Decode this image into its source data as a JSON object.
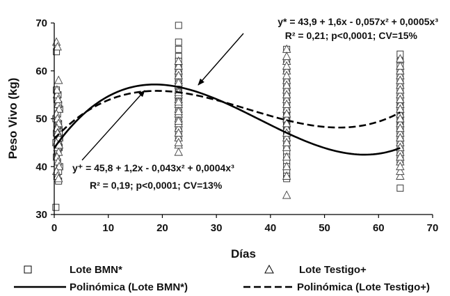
{
  "chart_data": {
    "type": "scatter",
    "title": "",
    "xlabel": "Días",
    "ylabel": "Peso Vivo (kg)",
    "xlim": [
      0,
      70
    ],
    "ylim": [
      30,
      70
    ],
    "xticks": [
      0,
      10,
      20,
      30,
      40,
      50,
      60,
      70
    ],
    "yticks": [
      30,
      40,
      50,
      60,
      70
    ],
    "grid": false,
    "legend_position": "bottom",
    "series": [
      {
        "name": "Lote BMN*",
        "marker": "square",
        "x": [
          0.3,
          0.4,
          0.8,
          0.5,
          0.8,
          1,
          0.6,
          0.4,
          0.7,
          0.9,
          0.5,
          0.3,
          0.8,
          1,
          0.6,
          0.4,
          0.9,
          0.7,
          0.5,
          0.8,
          0.3,
          0.6,
          1,
          0.8,
          0.5,
          0.7,
          0.4,
          0.9,
          0.6,
          0.8,
          23,
          23,
          23,
          23,
          23,
          23,
          23,
          23,
          23,
          23,
          23,
          23,
          23,
          23,
          23,
          23,
          23,
          23,
          23,
          23,
          23,
          23,
          23,
          23,
          23,
          23,
          23,
          23,
          23,
          23,
          43,
          43,
          43,
          43,
          43,
          43,
          43,
          43,
          43,
          43,
          43,
          43,
          43,
          43,
          43,
          43,
          43,
          43,
          43,
          43,
          43,
          43,
          43,
          43,
          43,
          43,
          43,
          43,
          43,
          43,
          64,
          64,
          64,
          64,
          64,
          64,
          64,
          64,
          64,
          64,
          64,
          64,
          64,
          64,
          64,
          64,
          64,
          64,
          64,
          64,
          64,
          64,
          64,
          64,
          64,
          64,
          64,
          64,
          64,
          64
        ],
        "y": [
          31.5,
          64,
          37,
          38,
          39,
          40,
          41,
          42,
          43,
          44,
          44.5,
          45,
          45.5,
          46,
          46.5,
          47,
          47.5,
          48,
          48.5,
          49,
          50,
          51,
          52,
          53,
          54,
          55,
          56,
          47.2,
          45.8,
          44.2,
          69.5,
          66,
          64.5,
          63,
          62,
          61,
          60,
          59,
          58,
          57.5,
          57,
          56.5,
          56,
          55.5,
          55,
          54.5,
          54,
          53.5,
          53,
          52,
          51,
          50,
          49,
          48,
          47,
          46,
          58.5,
          59.5,
          60.5,
          55.2,
          64.5,
          62,
          60,
          58,
          57,
          56,
          55,
          54,
          53,
          52,
          51,
          50.5,
          50,
          49.5,
          49,
          48.5,
          48,
          47.5,
          47,
          46,
          45,
          44,
          43,
          42,
          41,
          40,
          39,
          38,
          37.5,
          46.5,
          63.5,
          62,
          60,
          58,
          57,
          56,
          55,
          54,
          53,
          52,
          51,
          50.5,
          50,
          49.5,
          49,
          48.5,
          48,
          47.5,
          47,
          46,
          45,
          44,
          43,
          42,
          41,
          35.5,
          59,
          61,
          52.5,
          48.2
        ]
      },
      {
        "name": "Lote Testigo+",
        "marker": "triangle",
        "x": [
          0.4,
          0.6,
          0.8,
          0.5,
          0.7,
          0.9,
          0.4,
          0.6,
          0.8,
          0.5,
          0.7,
          0.9,
          0.4,
          0.6,
          0.8,
          0.5,
          0.7,
          0.9,
          0.4,
          0.6,
          0.8,
          0.5,
          0.7,
          0.9,
          0.6,
          23,
          23,
          23,
          23,
          23,
          23,
          23,
          23,
          23,
          23,
          23,
          23,
          23,
          23,
          23,
          23,
          23,
          23,
          23,
          23,
          23,
          23,
          23,
          23,
          23,
          43,
          43,
          43,
          43,
          43,
          43,
          43,
          43,
          43,
          43,
          43,
          43,
          43,
          43,
          43,
          43,
          43,
          43,
          43,
          43,
          43,
          43,
          43,
          43,
          43,
          64,
          64,
          64,
          64,
          64,
          64,
          64,
          64,
          64,
          64,
          64,
          64,
          64,
          64,
          64,
          64,
          64,
          64,
          64,
          64,
          64,
          64,
          64,
          64,
          64
        ],
        "y": [
          66,
          65,
          58,
          55,
          53,
          52,
          51,
          50,
          49,
          48,
          47,
          46,
          45,
          44,
          43,
          42,
          41,
          40,
          39,
          38,
          37.5,
          56,
          54,
          44.5,
          47,
          43,
          44.5,
          46,
          48,
          50,
          52,
          54,
          56,
          58,
          60,
          61,
          62,
          59,
          57,
          55,
          53,
          51,
          49,
          47,
          45,
          57.5,
          55.5,
          53.5,
          51.5,
          49.5,
          34,
          38,
          40,
          42,
          44,
          46,
          48,
          50,
          52,
          54,
          56,
          58,
          60,
          62,
          64.5,
          45,
          47,
          49,
          51,
          53,
          55,
          57,
          59,
          61,
          63,
          38,
          39,
          41,
          43,
          45,
          47,
          49,
          51,
          53,
          55,
          57,
          59,
          60,
          61,
          62.5,
          44,
          46,
          48,
          50,
          52,
          54,
          56,
          58,
          42,
          40
        ]
      },
      {
        "name": "Polinómica (Lote BMN*)",
        "type": "line",
        "style": "solid",
        "coefficients": [
          43.9,
          1.6,
          -0.057,
          0.0005
        ],
        "x_range": [
          0,
          64
        ]
      },
      {
        "name": "Polinómica (Lote Testigo+)",
        "type": "line",
        "style": "dashed",
        "coefficients": [
          45.8,
          1.2,
          -0.043,
          0.0004
        ],
        "x_range": [
          0,
          64
        ]
      }
    ],
    "annotations": [
      {
        "text": "y* = 43,9 + 1,6x - 0,057x² + 0,0005x³",
        "points_to": [
          26,
          56
        ]
      },
      {
        "text": "R² = 0,21; p<0,0001; CV=15%"
      },
      {
        "text": "y⁺ = 45,8 + 1,2x - 0,043x² + 0,0004x³",
        "points_to": [
          19,
          55
        ]
      },
      {
        "text": "R² = 0,19; p<0,0001; CV=13%"
      }
    ]
  }
}
